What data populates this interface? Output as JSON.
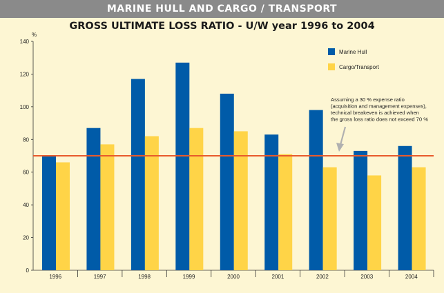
{
  "banner": "MARINE HULL AND CARGO / TRANSPORT",
  "colors": {
    "marine": "#005ba8",
    "cargo": "#ffd447",
    "threshold": "#e85a2b",
    "background": "#fdf6d3",
    "banner": "#8a8a8a",
    "arrow": "#b0b0b0"
  },
  "chart_data": {
    "type": "bar",
    "title": "GROSS ULTIMATE LOSS RATIO - U/W year 1996 to 2004",
    "ylabel": "%",
    "xlabel": "",
    "ylim": [
      0,
      140
    ],
    "yticks": [
      0,
      20,
      40,
      60,
      80,
      100,
      120,
      140
    ],
    "grid": false,
    "legend": "top-right",
    "categories": [
      "1996",
      "1997",
      "1998",
      "1999",
      "2000",
      "2001",
      "2002",
      "2003",
      "2004"
    ],
    "series": [
      {
        "name": "Marine Hull",
        "values": [
          70,
          87,
          117,
          127,
          108,
          83,
          98,
          73,
          76
        ]
      },
      {
        "name": "Cargo/Transport",
        "values": [
          66,
          77,
          82,
          87,
          85,
          71,
          63,
          58,
          63
        ]
      }
    ],
    "threshold": 70,
    "annotation": [
      "Assuming a 30 % expense ratio",
      "(acquisition and management expenses),",
      "technical breakeven is achieved when",
      "the gross loss ratio does not exceed 70 %"
    ]
  }
}
